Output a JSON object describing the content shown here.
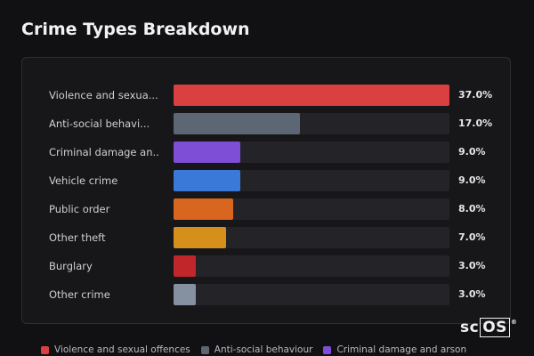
{
  "title": "Crime Types Breakdown",
  "logo": {
    "text_plain": "sc",
    "text_boxed": "OS",
    "mark": "®"
  },
  "chart_data": {
    "type": "bar",
    "orientation": "horizontal",
    "categories": [
      "Violence and sexua...",
      "Anti-social behavi...",
      "Criminal damage an...",
      "Vehicle crime",
      "Public order",
      "Other theft",
      "Burglary",
      "Other crime"
    ],
    "values": [
      37.0,
      17.0,
      9.0,
      9.0,
      8.0,
      7.0,
      3.0,
      3.0
    ],
    "value_labels": [
      "37.0%",
      "17.0%",
      "9.0%",
      "9.0%",
      "8.0%",
      "7.0%",
      "3.0%",
      "3.0%"
    ],
    "max_value": 37.0,
    "colors": [
      "#d9403f",
      "#5c6675",
      "#7e4fd6",
      "#3a79d8",
      "#d8661e",
      "#d4901a",
      "#c0262a",
      "#8590a0"
    ],
    "legend": [
      {
        "label": "Violence and sexual offences",
        "color": "#d9403f"
      },
      {
        "label": "Anti-social behaviour",
        "color": "#5c6675"
      },
      {
        "label": "Criminal damage and arson",
        "color": "#7e4fd6"
      }
    ],
    "legend_position": "bottom"
  }
}
